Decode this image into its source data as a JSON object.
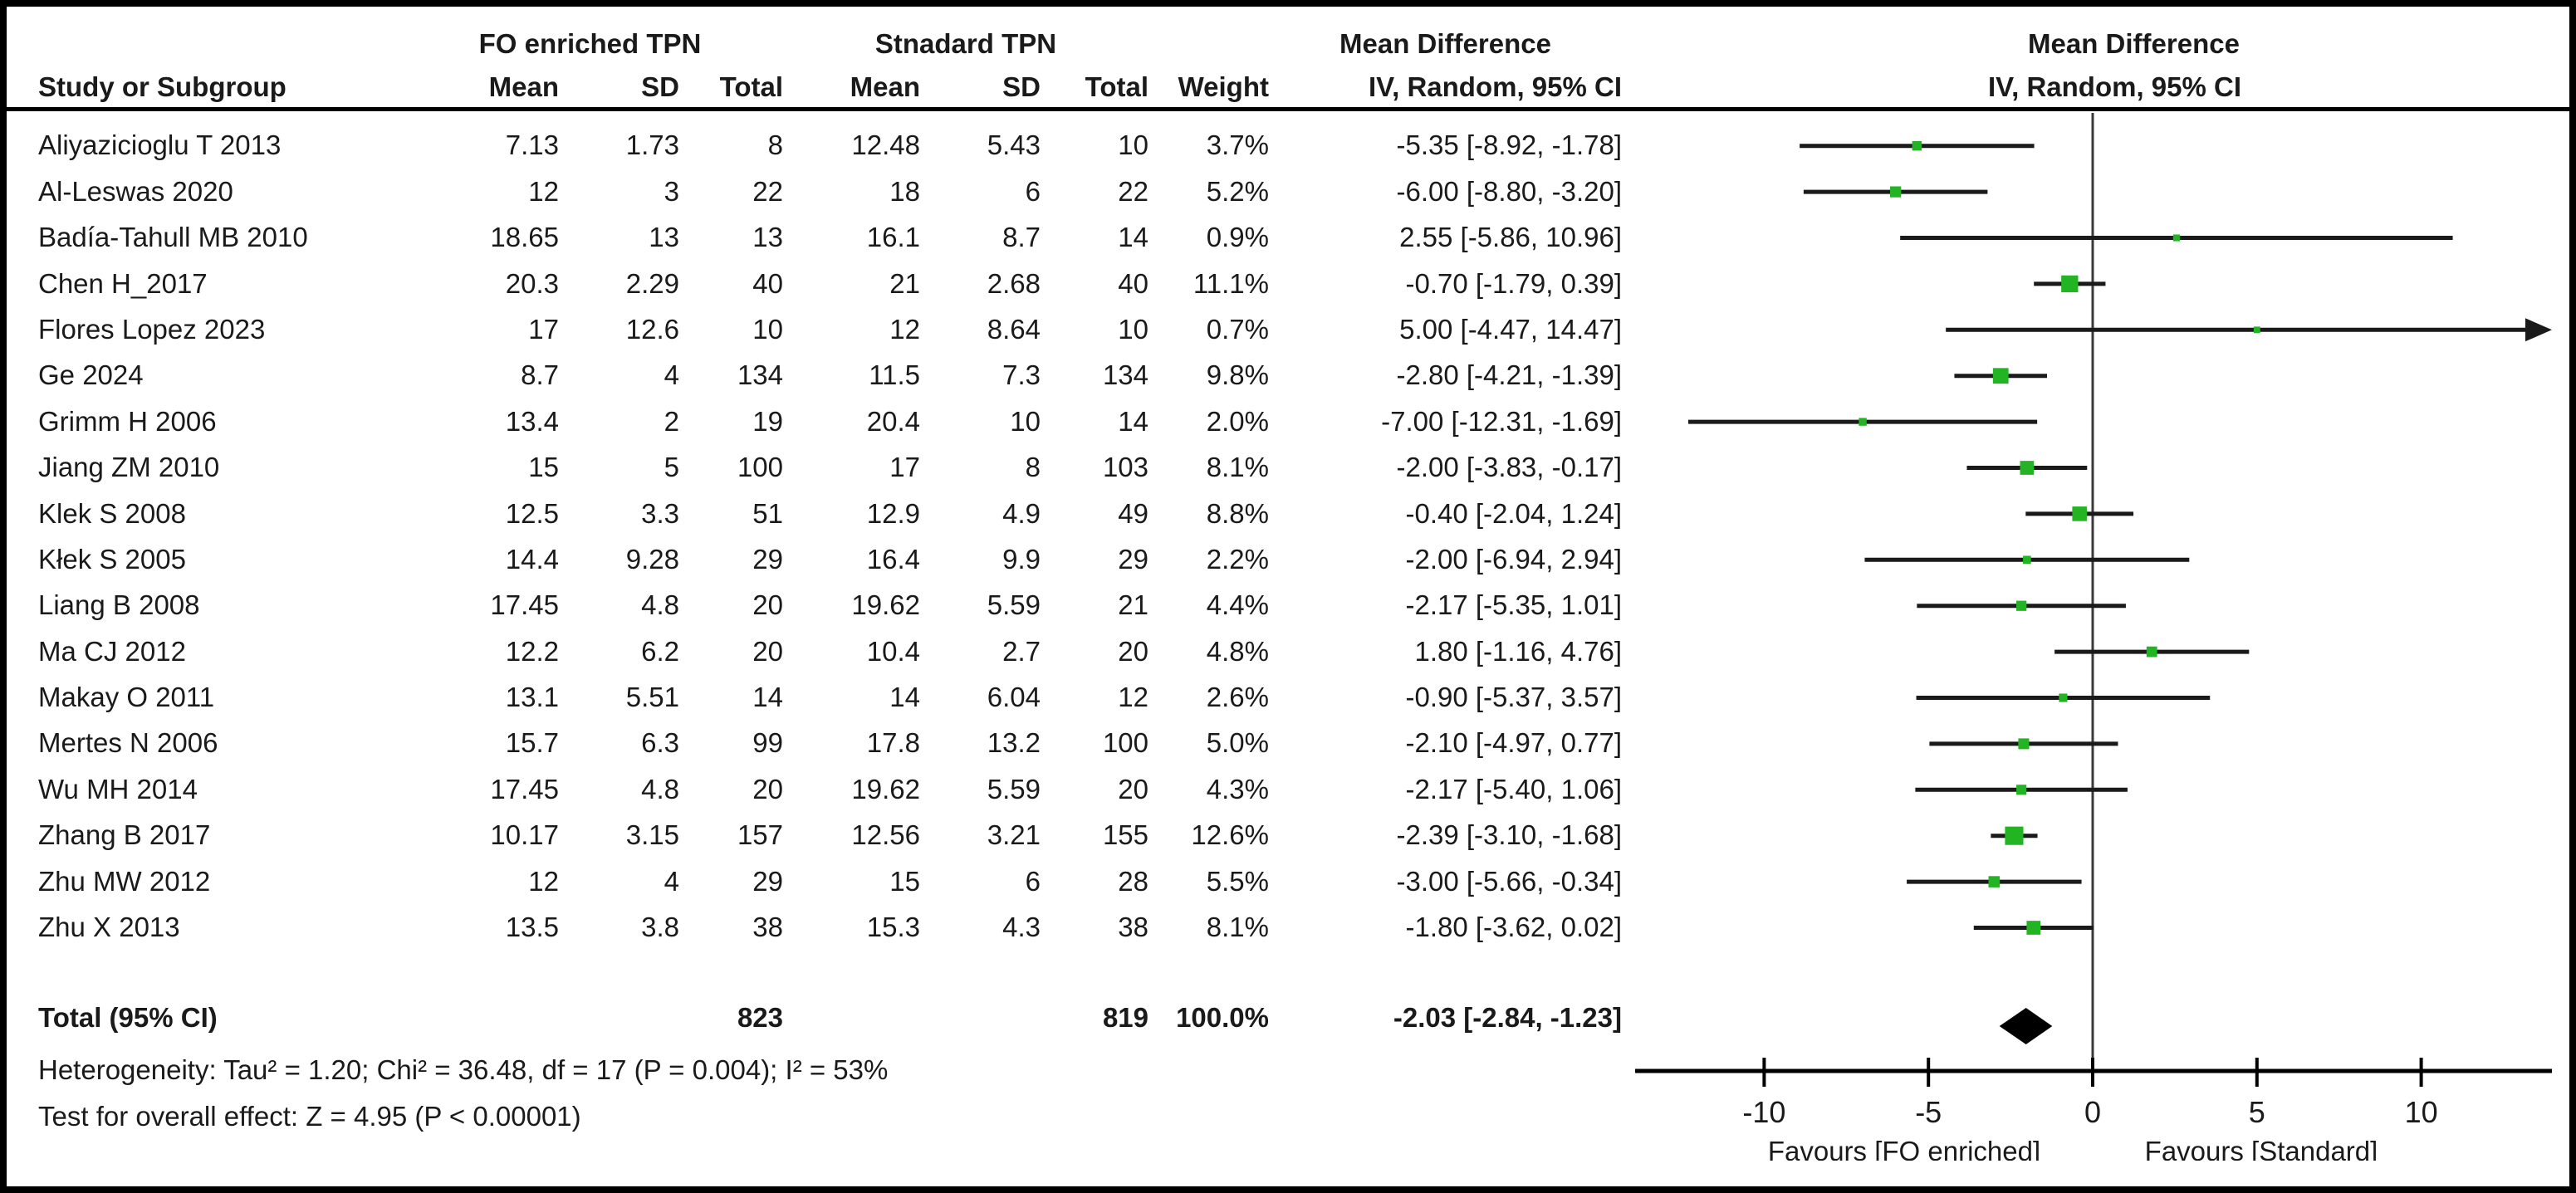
{
  "header": {
    "group1": "FO enriched TPN",
    "group2": "Stnadard TPN",
    "md_left": "Mean Difference",
    "md_right": "Mean Difference",
    "study_col": "Study or Subgroup",
    "mean_col": "Mean",
    "sd_col": "SD",
    "total_col": "Total",
    "weight_col": "Weight",
    "iv_left": "IV, Random, 95% CI",
    "iv_right": "IV, Random, 95% CI"
  },
  "rows": [
    {
      "study": "Aliyazicioglu T 2013",
      "mean1": "7.13",
      "sd1": "1.73",
      "total1": "8",
      "mean2": "12.48",
      "sd2": "5.43",
      "total2": "10",
      "weight": "3.7%",
      "ci": "-5.35 [-8.92, -1.78]",
      "w": 3.7,
      "est": -5.35,
      "lo": -8.92,
      "hi": -1.78
    },
    {
      "study": "Al-Leswas 2020",
      "mean1": "12",
      "sd1": "3",
      "total1": "22",
      "mean2": "18",
      "sd2": "6",
      "total2": "22",
      "weight": "5.2%",
      "ci": "-6.00 [-8.80, -3.20]",
      "w": 5.2,
      "est": -6.0,
      "lo": -8.8,
      "hi": -3.2
    },
    {
      "study": "Badía-Tahull MB 2010",
      "mean1": "18.65",
      "sd1": "13",
      "total1": "13",
      "mean2": "16.1",
      "sd2": "8.7",
      "total2": "14",
      "weight": "0.9%",
      "ci": "2.55 [-5.86, 10.96]",
      "w": 0.9,
      "est": 2.55,
      "lo": -5.86,
      "hi": 10.96
    },
    {
      "study": "Chen H_2017",
      "mean1": "20.3",
      "sd1": "2.29",
      "total1": "40",
      "mean2": "21",
      "sd2": "2.68",
      "total2": "40",
      "weight": "11.1%",
      "ci": "-0.70 [-1.79, 0.39]",
      "w": 11.1,
      "est": -0.7,
      "lo": -1.79,
      "hi": 0.39
    },
    {
      "study": "Flores Lopez 2023",
      "mean1": "17",
      "sd1": "12.6",
      "total1": "10",
      "mean2": "12",
      "sd2": "8.64",
      "total2": "10",
      "weight": "0.7%",
      "ci": "5.00 [-4.47, 14.47]",
      "w": 0.7,
      "est": 5.0,
      "lo": -4.47,
      "hi": 14.47
    },
    {
      "study": "Ge 2024",
      "mean1": "8.7",
      "sd1": "4",
      "total1": "134",
      "mean2": "11.5",
      "sd2": "7.3",
      "total2": "134",
      "weight": "9.8%",
      "ci": "-2.80 [-4.21, -1.39]",
      "w": 9.8,
      "est": -2.8,
      "lo": -4.21,
      "hi": -1.39
    },
    {
      "study": "Grimm H 2006",
      "mean1": "13.4",
      "sd1": "2",
      "total1": "19",
      "mean2": "20.4",
      "sd2": "10",
      "total2": "14",
      "weight": "2.0%",
      "ci": "-7.00 [-12.31, -1.69]",
      "w": 2.0,
      "est": -7.0,
      "lo": -12.31,
      "hi": -1.69
    },
    {
      "study": "Jiang ZM 2010",
      "mean1": "15",
      "sd1": "5",
      "total1": "100",
      "mean2": "17",
      "sd2": "8",
      "total2": "103",
      "weight": "8.1%",
      "ci": "-2.00 [-3.83, -0.17]",
      "w": 8.1,
      "est": -2.0,
      "lo": -3.83,
      "hi": -0.17
    },
    {
      "study": "Klek S 2008",
      "mean1": "12.5",
      "sd1": "3.3",
      "total1": "51",
      "mean2": "12.9",
      "sd2": "4.9",
      "total2": "49",
      "weight": "8.8%",
      "ci": "-0.40 [-2.04, 1.24]",
      "w": 8.8,
      "est": -0.4,
      "lo": -2.04,
      "hi": 1.24
    },
    {
      "study": "Kłek S 2005",
      "mean1": "14.4",
      "sd1": "9.28",
      "total1": "29",
      "mean2": "16.4",
      "sd2": "9.9",
      "total2": "29",
      "weight": "2.2%",
      "ci": "-2.00 [-6.94, 2.94]",
      "w": 2.2,
      "est": -2.0,
      "lo": -6.94,
      "hi": 2.94
    },
    {
      "study": "Liang B 2008",
      "mean1": "17.45",
      "sd1": "4.8",
      "total1": "20",
      "mean2": "19.62",
      "sd2": "5.59",
      "total2": "21",
      "weight": "4.4%",
      "ci": "-2.17 [-5.35, 1.01]",
      "w": 4.4,
      "est": -2.17,
      "lo": -5.35,
      "hi": 1.01
    },
    {
      "study": "Ma CJ 2012",
      "mean1": "12.2",
      "sd1": "6.2",
      "total1": "20",
      "mean2": "10.4",
      "sd2": "2.7",
      "total2": "20",
      "weight": "4.8%",
      "ci": "1.80 [-1.16, 4.76]",
      "w": 4.8,
      "est": 1.8,
      "lo": -1.16,
      "hi": 4.76
    },
    {
      "study": "Makay O 2011",
      "mean1": "13.1",
      "sd1": "5.51",
      "total1": "14",
      "mean2": "14",
      "sd2": "6.04",
      "total2": "12",
      "weight": "2.6%",
      "ci": "-0.90 [-5.37, 3.57]",
      "w": 2.6,
      "est": -0.9,
      "lo": -5.37,
      "hi": 3.57
    },
    {
      "study": "Mertes N 2006",
      "mean1": "15.7",
      "sd1": "6.3",
      "total1": "99",
      "mean2": "17.8",
      "sd2": "13.2",
      "total2": "100",
      "weight": "5.0%",
      "ci": "-2.10 [-4.97, 0.77]",
      "w": 5.0,
      "est": -2.1,
      "lo": -4.97,
      "hi": 0.77
    },
    {
      "study": "Wu MH 2014",
      "mean1": "17.45",
      "sd1": "4.8",
      "total1": "20",
      "mean2": "19.62",
      "sd2": "5.59",
      "total2": "20",
      "weight": "4.3%",
      "ci": "-2.17 [-5.40, 1.06]",
      "w": 4.3,
      "est": -2.17,
      "lo": -5.4,
      "hi": 1.06
    },
    {
      "study": "Zhang B 2017",
      "mean1": "10.17",
      "sd1": "3.15",
      "total1": "157",
      "mean2": "12.56",
      "sd2": "3.21",
      "total2": "155",
      "weight": "12.6%",
      "ci": "-2.39 [-3.10, -1.68]",
      "w": 12.6,
      "est": -2.39,
      "lo": -3.1,
      "hi": -1.68
    },
    {
      "study": "Zhu MW 2012",
      "mean1": "12",
      "sd1": "4",
      "total1": "29",
      "mean2": "15",
      "sd2": "6",
      "total2": "28",
      "weight": "5.5%",
      "ci": "-3.00 [-5.66, -0.34]",
      "w": 5.5,
      "est": -3.0,
      "lo": -5.66,
      "hi": -0.34
    },
    {
      "study": "Zhu X 2013",
      "mean1": "13.5",
      "sd1": "3.8",
      "total1": "38",
      "mean2": "15.3",
      "sd2": "4.3",
      "total2": "38",
      "weight": "8.1%",
      "ci": "-1.80 [-3.62, 0.02]",
      "w": 8.1,
      "est": -1.8,
      "lo": -3.62,
      "hi": 0.02
    }
  ],
  "total": {
    "label": "Total (95% CI)",
    "total1": "823",
    "total2": "819",
    "weight": "100.0%",
    "ci": "-2.03 [-2.84, -1.23]",
    "est": -2.03,
    "lo": -2.84,
    "hi": -1.23
  },
  "heterogeneity": "Heterogeneity: Tau² = 1.20; Chi² = 36.48, df = 17 (P = 0.004); I² = 53%",
  "overall_test": "Test for overall effect: Z = 4.95 (P < 0.00001)",
  "axis": {
    "ticks": [
      "-10",
      "-5",
      "0",
      "5",
      "10"
    ],
    "tick_values": [
      -10,
      -5,
      0,
      5,
      10
    ],
    "favours_left": "Favours [FO enriched]",
    "favours_right": "Favours [Standard]"
  },
  "colors": {
    "marker_green": "#22b422",
    "line_black": "#1a1a1a",
    "diamond_black": "#000000"
  },
  "chart_data": {
    "type": "forest",
    "effect_measure": "Mean Difference",
    "model": "IV, Random, 95% CI",
    "group_labels": [
      "FO enriched TPN",
      "Stnadard TPN"
    ],
    "studies": [
      "Aliyazicioglu T 2013",
      "Al-Leswas 2020",
      "Badía-Tahull MB 2010",
      "Chen H_2017",
      "Flores Lopez 2023",
      "Ge 2024",
      "Grimm H 2006",
      "Jiang ZM 2010",
      "Klek S 2008",
      "Kłek S 2005",
      "Liang B 2008",
      "Ma CJ 2012",
      "Makay O 2011",
      "Mertes N 2006",
      "Wu MH 2014",
      "Zhang B 2017",
      "Zhu MW 2012",
      "Zhu X 2013"
    ],
    "estimates": [
      -5.35,
      -6.0,
      2.55,
      -0.7,
      5.0,
      -2.8,
      -7.0,
      -2.0,
      -0.4,
      -2.0,
      -2.17,
      1.8,
      -0.9,
      -2.1,
      -2.17,
      -2.39,
      -3.0,
      -1.8
    ],
    "ci_lower": [
      -8.92,
      -8.8,
      -5.86,
      -1.79,
      -4.47,
      -4.21,
      -12.31,
      -3.83,
      -2.04,
      -6.94,
      -5.35,
      -1.16,
      -5.37,
      -4.97,
      -5.4,
      -3.1,
      -5.66,
      -3.62
    ],
    "ci_upper": [
      -1.78,
      -3.2,
      10.96,
      0.39,
      14.47,
      -1.39,
      -1.69,
      -0.17,
      1.24,
      2.94,
      1.01,
      4.76,
      3.57,
      0.77,
      1.06,
      -1.68,
      -0.34,
      0.02
    ],
    "weights_pct": [
      3.7,
      5.2,
      0.9,
      11.1,
      0.7,
      9.8,
      2.0,
      8.1,
      8.8,
      2.2,
      4.4,
      4.8,
      2.6,
      5.0,
      4.3,
      12.6,
      5.5,
      8.1
    ],
    "group1": {
      "means": [
        7.13,
        12,
        18.65,
        20.3,
        17,
        8.7,
        13.4,
        15,
        12.5,
        14.4,
        17.45,
        12.2,
        13.1,
        15.7,
        17.45,
        10.17,
        12,
        13.5
      ],
      "sds": [
        1.73,
        3,
        13,
        2.29,
        12.6,
        4,
        2,
        5,
        3.3,
        9.28,
        4.8,
        6.2,
        5.51,
        6.3,
        4.8,
        3.15,
        4,
        3.8
      ],
      "totals": [
        8,
        22,
        13,
        40,
        10,
        134,
        19,
        100,
        51,
        29,
        20,
        20,
        14,
        99,
        20,
        157,
        29,
        38
      ],
      "total_sum": 823
    },
    "group2": {
      "means": [
        12.48,
        18,
        16.1,
        21,
        12,
        11.5,
        20.4,
        17,
        12.9,
        16.4,
        19.62,
        10.4,
        14,
        17.8,
        19.62,
        12.56,
        15,
        15.3
      ],
      "sds": [
        5.43,
        6,
        8.7,
        2.68,
        8.64,
        7.3,
        10,
        8,
        4.9,
        9.9,
        5.59,
        2.7,
        6.04,
        13.2,
        5.59,
        3.21,
        6,
        4.3
      ],
      "totals": [
        10,
        22,
        14,
        40,
        10,
        134,
        14,
        103,
        49,
        29,
        21,
        20,
        12,
        100,
        20,
        155,
        28,
        38
      ],
      "total_sum": 819
    },
    "pooled": {
      "estimate": -2.03,
      "ci_lower": -2.84,
      "ci_upper": -1.23,
      "weight_pct": 100.0
    },
    "heterogeneity": {
      "tau2": 1.2,
      "chi2": 36.48,
      "df": 17,
      "p": 0.004,
      "i2_pct": 53
    },
    "overall_effect": {
      "z": 4.95,
      "p": "< 0.00001"
    },
    "xlim": [
      -13.9,
      13.9
    ],
    "x_ticks": [
      -10,
      -5,
      0,
      5,
      10
    ],
    "x_annotations": [
      "Favours [FO enriched]",
      "Favours [Standard]"
    ]
  }
}
